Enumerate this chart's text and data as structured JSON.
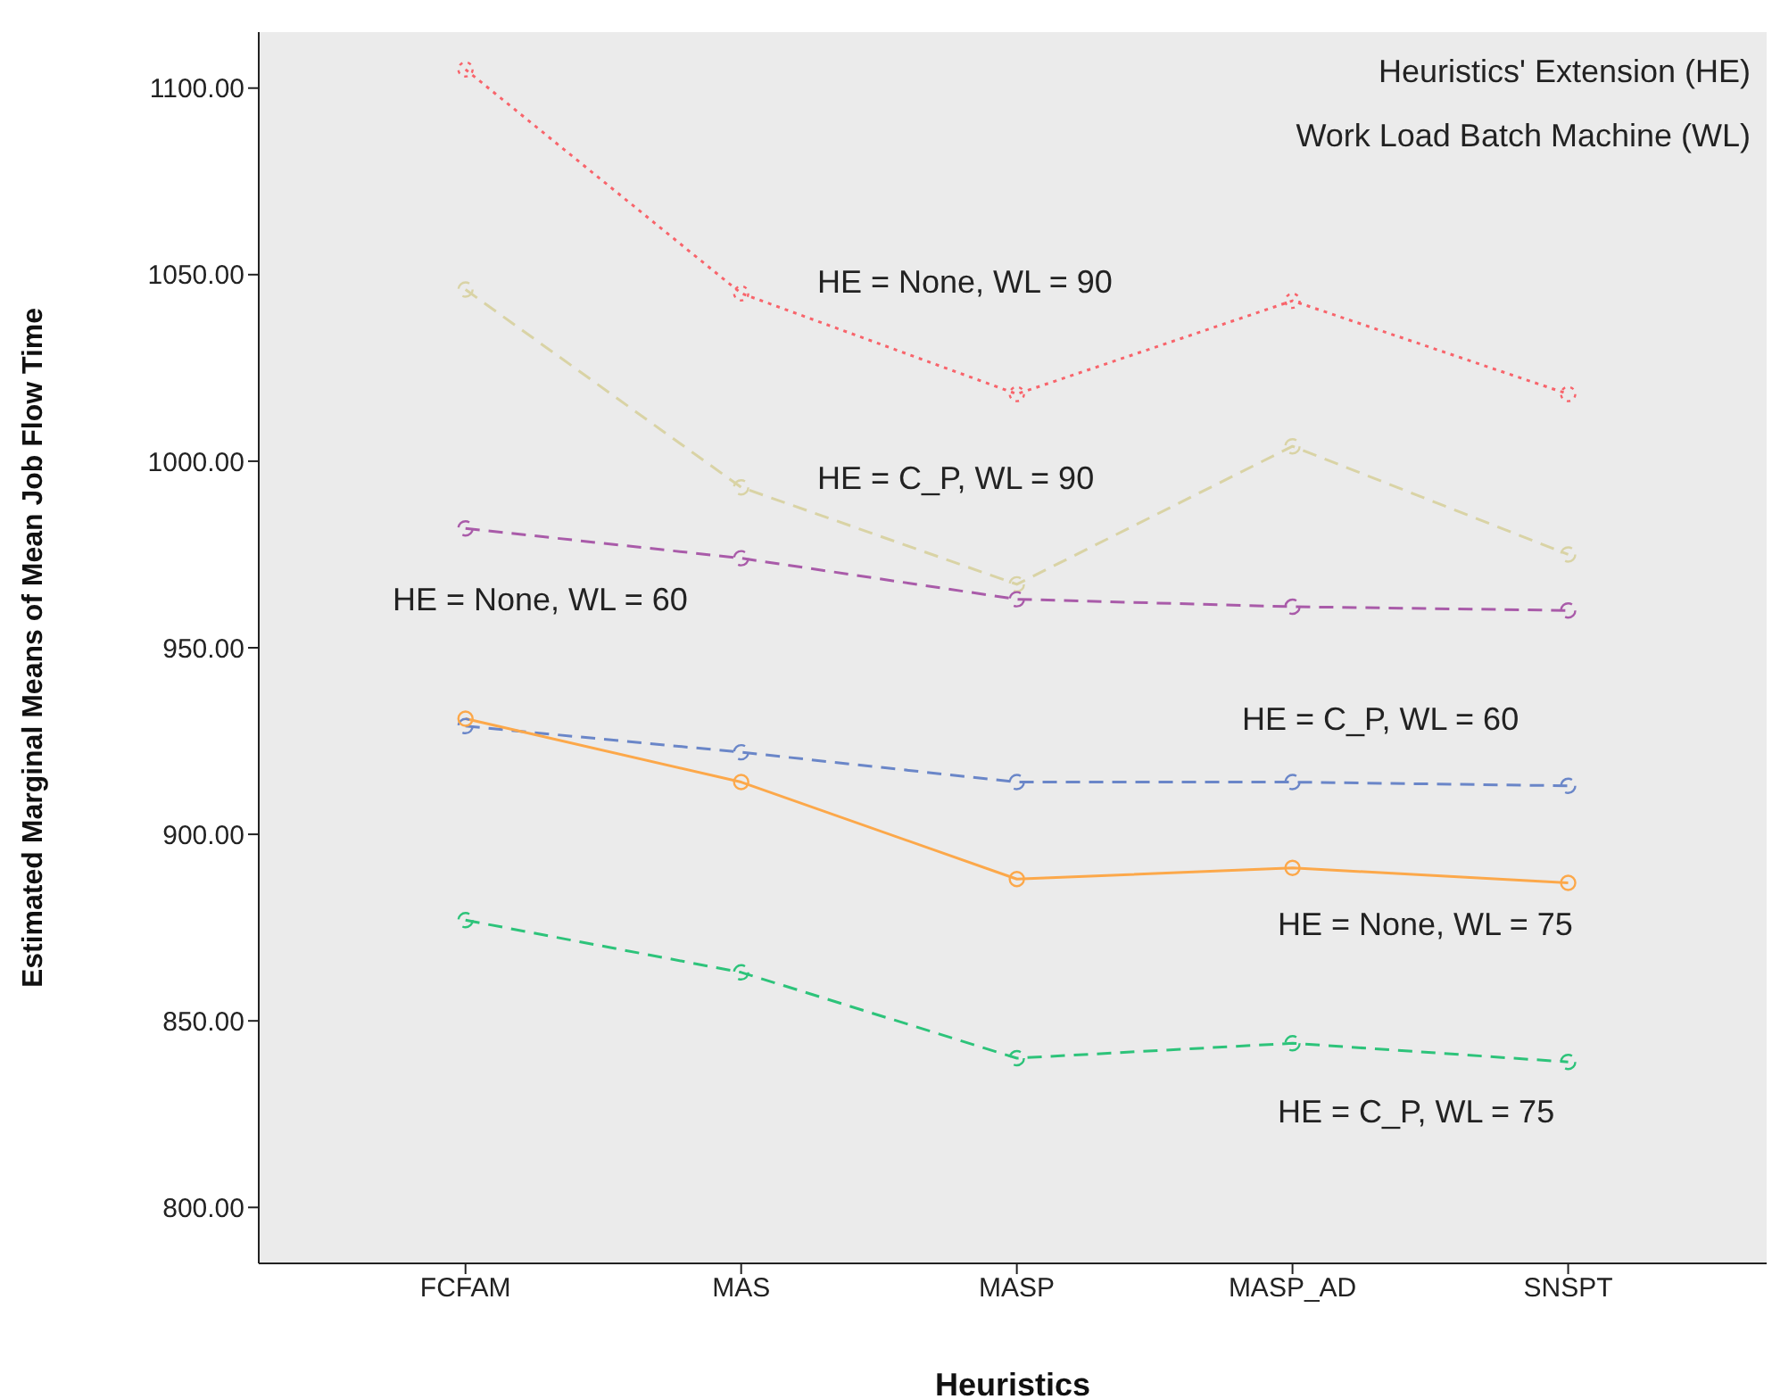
{
  "chart_data": {
    "type": "line",
    "xlabel": "Heuristics",
    "ylabel": "Estimated Marginal Means of Mean Job Flow Time",
    "annotations": [
      "Heuristics' Extension (HE)",
      "Work Load Batch Machine (WL)"
    ],
    "categories": [
      "FCFAM",
      "MAS",
      "MASP",
      "MASP_AD",
      "SNSPT"
    ],
    "ylim": [
      785,
      1115
    ],
    "yticks": [
      {
        "value": 800,
        "label": "800.00"
      },
      {
        "value": 850,
        "label": "850.00"
      },
      {
        "value": 900,
        "label": "900.00"
      },
      {
        "value": 950,
        "label": "950.00"
      },
      {
        "value": 1000,
        "label": "1000.00"
      },
      {
        "value": 1050,
        "label": "1050.00"
      },
      {
        "value": 1100,
        "label": "1100.00"
      }
    ],
    "marker": "circle",
    "grid": false,
    "series": [
      {
        "name": "HE = None, WL = 90",
        "color": "#f8646b",
        "line_style": "dotted",
        "values": [
          1105,
          1045,
          1018,
          1043,
          1018
        ]
      },
      {
        "name": "HE = C_P, WL = 90",
        "color": "#d9d3a5",
        "line_style": "dashed",
        "values": [
          1046,
          993,
          967,
          1004,
          975
        ]
      },
      {
        "name": "HE = None, WL = 60",
        "color": "#a95ba9",
        "line_style": "dashed",
        "values": [
          982,
          974,
          963,
          961,
          960
        ]
      },
      {
        "name": "HE = C_P, WL = 60",
        "color": "#6a86c8",
        "line_style": "dashed",
        "values": [
          929,
          922,
          914,
          914,
          913
        ]
      },
      {
        "name": "HE = None, WL = 75",
        "color": "#fca84a",
        "line_style": "solid",
        "values": [
          931,
          914,
          888,
          891,
          887
        ]
      },
      {
        "name": "HE = C_P, WL = 75",
        "color": "#2dc37a",
        "line_style": "dashed",
        "values": [
          877,
          863,
          840,
          844,
          839
        ]
      }
    ]
  }
}
